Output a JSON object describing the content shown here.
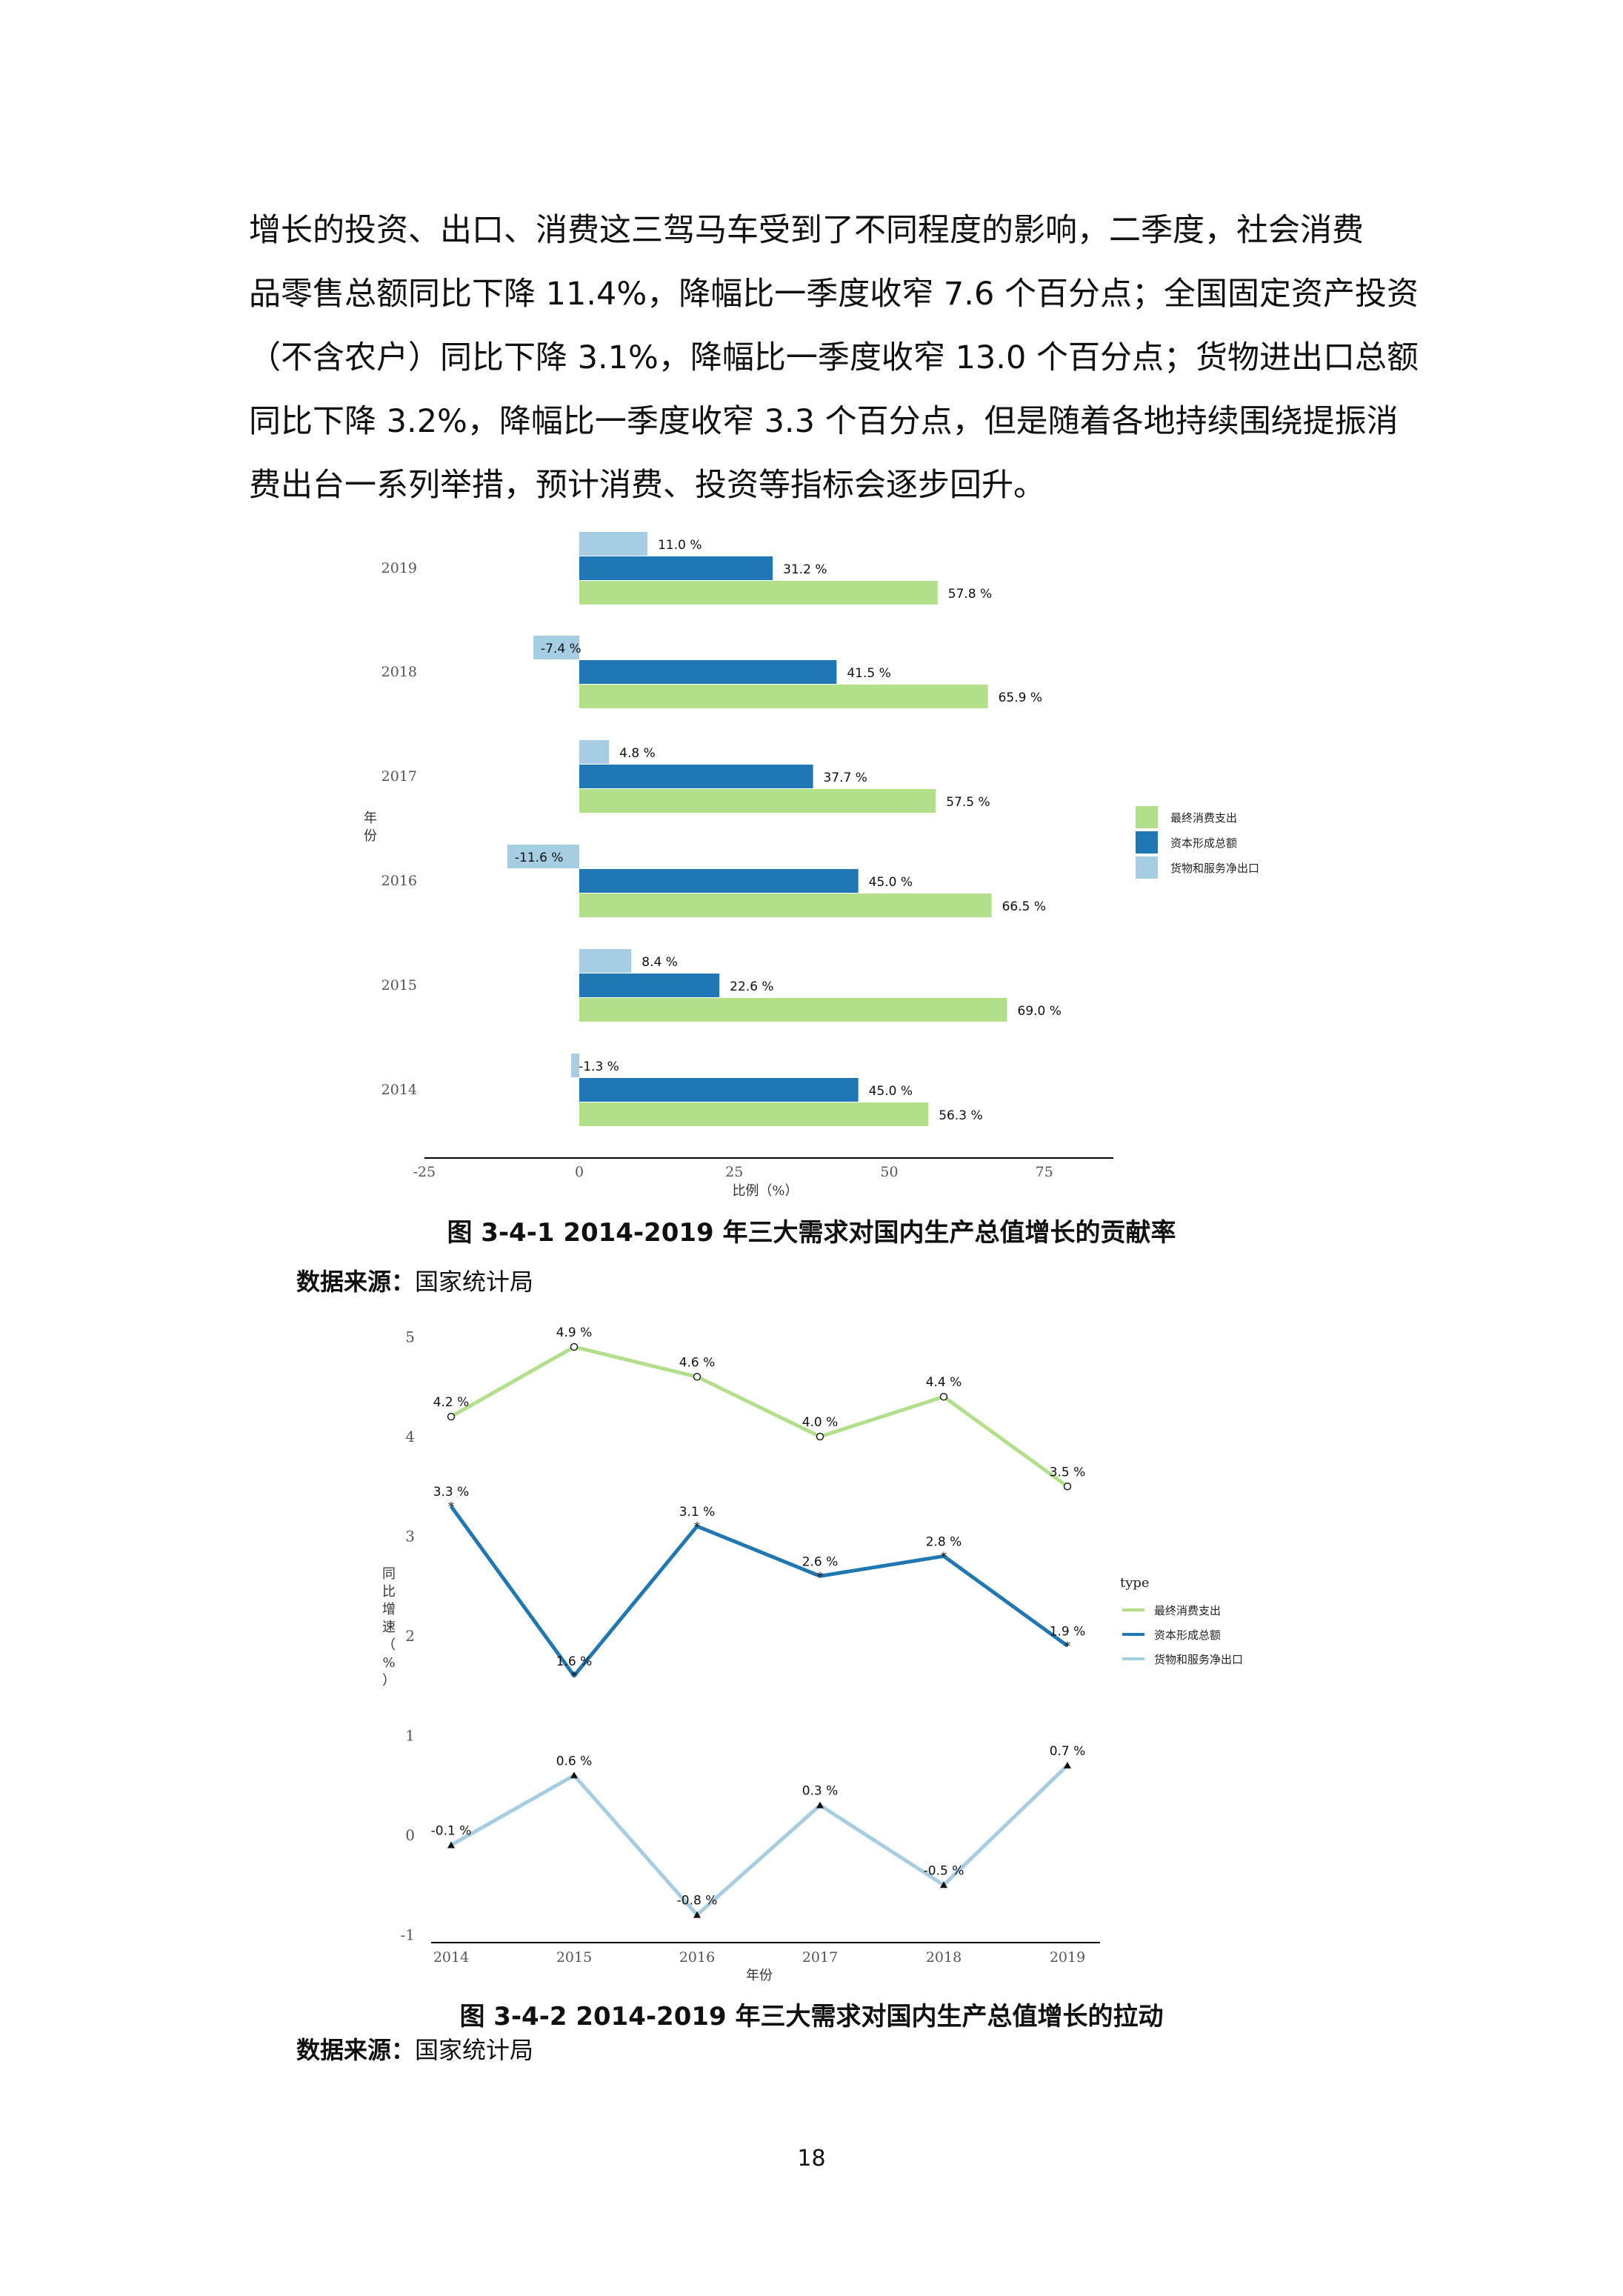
{
  "paragraph": [
    "增长的投资、出口、消费这三驾马车受到了不同程度的影响，二季度，社会消费",
    "品零售总额同比下降 11.4%，降幅比一季度收窄 7.6 个百分点；全国固定资产投资",
    "（不含农户）同比下降 3.1%，降幅比一季度收窄 13.0 个百分点；货物进出口总额",
    "同比下降 3.2%，降幅比一季度收窄 3.3 个百分点，但是随着各地持续围绕提振消",
    "费出台一系列举措，预计消费、投资等指标会逐步回升。"
  ],
  "figure1": {
    "caption": "图 3-4-1 2014-2019 年三大需求对国内生产总值增长的贡献率",
    "source_label": "数据来源：",
    "source_value": "国家统计局"
  },
  "figure2": {
    "caption": "图 3-4-2 2014-2019 年三大需求对国内生产总值增长的拉动",
    "source_label": "数据来源：",
    "source_value": "国家统计局"
  },
  "page_number": "18",
  "colors": {
    "consumption": "#b2df8a",
    "capital": "#1f78b4",
    "net_export": "#a6cee3"
  },
  "chart_data": [
    {
      "type": "bar",
      "orientation": "horizontal",
      "categories": [
        "2019",
        "2018",
        "2017",
        "2016",
        "2015",
        "2014"
      ],
      "series": [
        {
          "name": "货物和服务净出口",
          "values": [
            11.0,
            -7.4,
            4.8,
            -11.6,
            8.4,
            -1.3
          ],
          "labels": [
            "11.0 %",
            "-7.4 %",
            "4.8 %",
            "-11.6 %",
            "8.4 %",
            "-1.3 %"
          ]
        },
        {
          "name": "资本形成总额",
          "values": [
            31.2,
            41.5,
            37.7,
            45.0,
            22.6,
            45.0
          ],
          "labels": [
            "31.2 %",
            "41.5 %",
            "37.7 %",
            "45.0 %",
            "22.6 %",
            "45.0 %"
          ]
        },
        {
          "name": "最终消费支出",
          "values": [
            57.8,
            65.9,
            57.5,
            66.5,
            69.0,
            56.3
          ],
          "labels": [
            "57.8 %",
            "65.9 %",
            "57.5 %",
            "66.5 %",
            "69.0 %",
            "56.3 %"
          ]
        }
      ],
      "legend": [
        "最终消费支出",
        "资本形成总额",
        "货物和服务净出口"
      ],
      "xlabel": "比例（%）",
      "ylabel": "年份",
      "xlim": [
        -25,
        85
      ],
      "xticks": [
        "-25",
        "0",
        "25",
        "50",
        "75"
      ],
      "legend_position": "right"
    },
    {
      "type": "line",
      "x": [
        "2014",
        "2015",
        "2016",
        "2017",
        "2018",
        "2019"
      ],
      "series": [
        {
          "name": "最终消费支出",
          "values": [
            4.2,
            4.9,
            4.6,
            4.0,
            4.4,
            3.5
          ],
          "labels": [
            "4.2 %",
            "4.9 %",
            "4.6 %",
            "4.0 %",
            "4.4 %",
            "3.5 %"
          ]
        },
        {
          "name": "资本形成总额",
          "values": [
            3.3,
            1.6,
            3.1,
            2.6,
            2.8,
            1.9
          ],
          "labels": [
            "3.3 %",
            "1.6 %",
            "3.1 %",
            "2.6 %",
            "2.8 %",
            "1.9 %"
          ]
        },
        {
          "name": "货物和服务净出口",
          "values": [
            -0.1,
            0.6,
            -0.8,
            0.3,
            -0.5,
            0.7
          ],
          "labels": [
            "-0.1 %",
            "0.6 %",
            "-0.8 %",
            "0.3 %",
            "-0.5 %",
            "0.7 %"
          ]
        }
      ],
      "legend_title": "type",
      "xlabel": "年份",
      "ylabel": "同比增速（%）",
      "ylim": [
        -1,
        5
      ],
      "yticks": [
        "5",
        "4",
        "3",
        "2",
        "1",
        "0",
        "-1"
      ],
      "legend_position": "right"
    }
  ]
}
